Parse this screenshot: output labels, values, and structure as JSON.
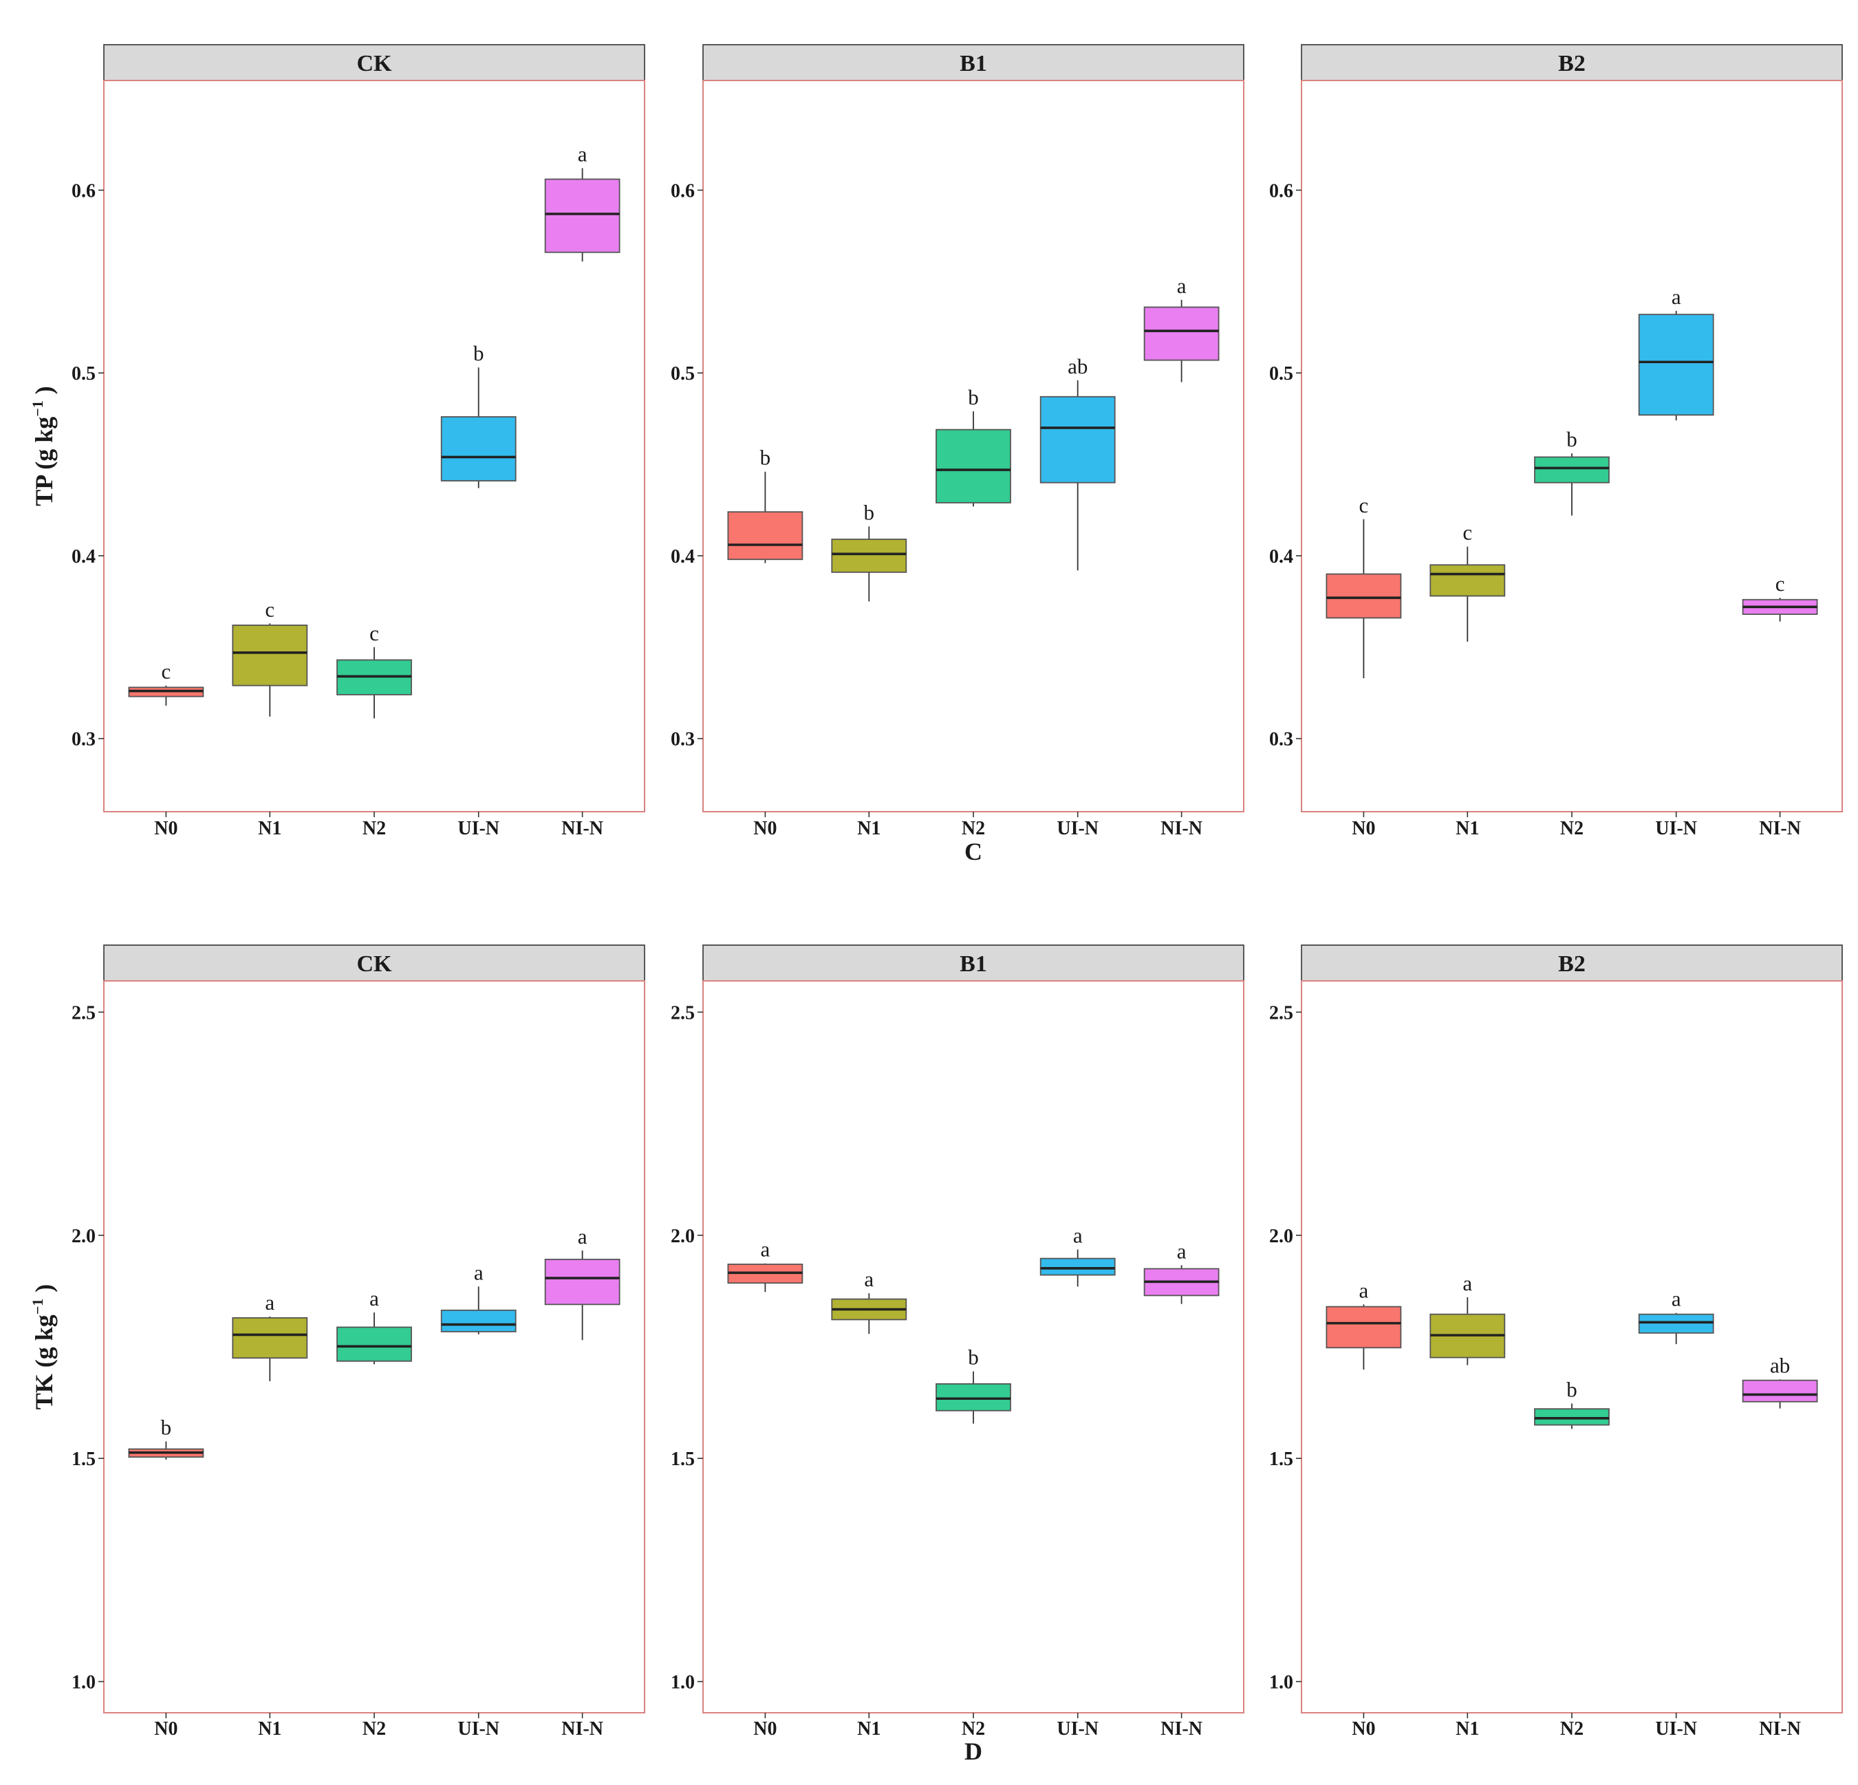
{
  "chart_data": [
    {
      "type": "boxplot",
      "panel_id": "C",
      "xlabel": "C",
      "ylabel": "TP",
      "ylabel_unit": "g kg",
      "ylabel_exponent": "−1",
      "ylim": [
        0.26,
        0.66
      ],
      "yticks": [
        "0.3",
        "0.4",
        "0.5",
        "0.6"
      ],
      "categories": [
        "N0",
        "N1",
        "N2",
        "UI-N",
        "NI-N"
      ],
      "colors": [
        "#F8766D",
        "#B2B233",
        "#33CC92",
        "#33BBEE",
        "#E97FF0"
      ],
      "facets": [
        {
          "label": "CK",
          "boxes": [
            {
              "min": 0.318,
              "q1": 0.323,
              "median": 0.326,
              "q3": 0.328,
              "max": 0.329,
              "sig": "c"
            },
            {
              "min": 0.312,
              "q1": 0.329,
              "median": 0.347,
              "q3": 0.362,
              "max": 0.363,
              "sig": "c"
            },
            {
              "min": 0.311,
              "q1": 0.324,
              "median": 0.334,
              "q3": 0.343,
              "max": 0.35,
              "sig": "c"
            },
            {
              "min": 0.437,
              "q1": 0.441,
              "median": 0.454,
              "q3": 0.476,
              "max": 0.503,
              "sig": "b"
            },
            {
              "min": 0.561,
              "q1": 0.566,
              "median": 0.587,
              "q3": 0.606,
              "max": 0.612,
              "sig": "a"
            }
          ]
        },
        {
          "label": "B1",
          "boxes": [
            {
              "min": 0.396,
              "q1": 0.398,
              "median": 0.406,
              "q3": 0.424,
              "max": 0.446,
              "sig": "b"
            },
            {
              "min": 0.375,
              "q1": 0.391,
              "median": 0.401,
              "q3": 0.409,
              "max": 0.416,
              "sig": "b"
            },
            {
              "min": 0.427,
              "q1": 0.429,
              "median": 0.447,
              "q3": 0.469,
              "max": 0.479,
              "sig": "b"
            },
            {
              "min": 0.392,
              "q1": 0.44,
              "median": 0.47,
              "q3": 0.487,
              "max": 0.496,
              "sig": "ab"
            },
            {
              "min": 0.495,
              "q1": 0.507,
              "median": 0.523,
              "q3": 0.536,
              "max": 0.54,
              "sig": "a"
            }
          ]
        },
        {
          "label": "B2",
          "boxes": [
            {
              "min": 0.333,
              "q1": 0.366,
              "median": 0.377,
              "q3": 0.39,
              "max": 0.42,
              "sig": "c"
            },
            {
              "min": 0.353,
              "q1": 0.378,
              "median": 0.39,
              "q3": 0.395,
              "max": 0.405,
              "sig": "c"
            },
            {
              "min": 0.422,
              "q1": 0.44,
              "median": 0.448,
              "q3": 0.454,
              "max": 0.456,
              "sig": "b"
            },
            {
              "min": 0.474,
              "q1": 0.477,
              "median": 0.506,
              "q3": 0.532,
              "max": 0.534,
              "sig": "a"
            },
            {
              "min": 0.364,
              "q1": 0.368,
              "median": 0.372,
              "q3": 0.376,
              "max": 0.377,
              "sig": "c"
            }
          ]
        }
      ]
    },
    {
      "type": "boxplot",
      "panel_id": "D",
      "xlabel": "D",
      "ylabel": "TK",
      "ylabel_unit": "g kg",
      "ylabel_exponent": "−1",
      "ylim": [
        0.93,
        2.57
      ],
      "yticks": [
        "1.0",
        "1.5",
        "2.0",
        "2.5"
      ],
      "categories": [
        "N0",
        "N1",
        "N2",
        "UI-N",
        "NI-N"
      ],
      "colors": [
        "#F8766D",
        "#B2B233",
        "#33CC92",
        "#33BBEE",
        "#E97FF0"
      ],
      "facets": [
        {
          "label": "CK",
          "boxes": [
            {
              "min": 1.497,
              "q1": 1.503,
              "median": 1.513,
              "q3": 1.521,
              "max": 1.538,
              "sig": "b"
            },
            {
              "min": 1.673,
              "q1": 1.725,
              "median": 1.777,
              "q3": 1.815,
              "max": 1.818,
              "sig": "a"
            },
            {
              "min": 1.711,
              "q1": 1.718,
              "median": 1.751,
              "q3": 1.794,
              "max": 1.827,
              "sig": "a"
            },
            {
              "min": 1.778,
              "q1": 1.784,
              "median": 1.8,
              "q3": 1.832,
              "max": 1.885,
              "sig": "a"
            },
            {
              "min": 1.765,
              "q1": 1.845,
              "median": 1.904,
              "q3": 1.946,
              "max": 1.966,
              "sig": "a"
            }
          ]
        },
        {
          "label": "B1",
          "boxes": [
            {
              "min": 1.873,
              "q1": 1.893,
              "median": 1.916,
              "q3": 1.935,
              "max": 1.937,
              "sig": "a"
            },
            {
              "min": 1.779,
              "q1": 1.811,
              "median": 1.834,
              "q3": 1.857,
              "max": 1.87,
              "sig": "a"
            },
            {
              "min": 1.578,
              "q1": 1.607,
              "median": 1.634,
              "q3": 1.667,
              "max": 1.695,
              "sig": "b"
            },
            {
              "min": 1.885,
              "q1": 1.911,
              "median": 1.926,
              "q3": 1.948,
              "max": 1.968,
              "sig": "a"
            },
            {
              "min": 1.846,
              "q1": 1.865,
              "median": 1.896,
              "q3": 1.925,
              "max": 1.933,
              "sig": "a"
            }
          ]
        },
        {
          "label": "B2",
          "boxes": [
            {
              "min": 1.699,
              "q1": 1.748,
              "median": 1.803,
              "q3": 1.84,
              "max": 1.845,
              "sig": "a"
            },
            {
              "min": 1.709,
              "q1": 1.726,
              "median": 1.776,
              "q3": 1.823,
              "max": 1.861,
              "sig": "a"
            },
            {
              "min": 1.566,
              "q1": 1.575,
              "median": 1.59,
              "q3": 1.611,
              "max": 1.623,
              "sig": "b"
            },
            {
              "min": 1.756,
              "q1": 1.781,
              "median": 1.805,
              "q3": 1.823,
              "max": 1.826,
              "sig": "a"
            },
            {
              "min": 1.612,
              "q1": 1.627,
              "median": 1.643,
              "q3": 1.675,
              "max": 1.677,
              "sig": "ab"
            }
          ]
        }
      ]
    }
  ]
}
